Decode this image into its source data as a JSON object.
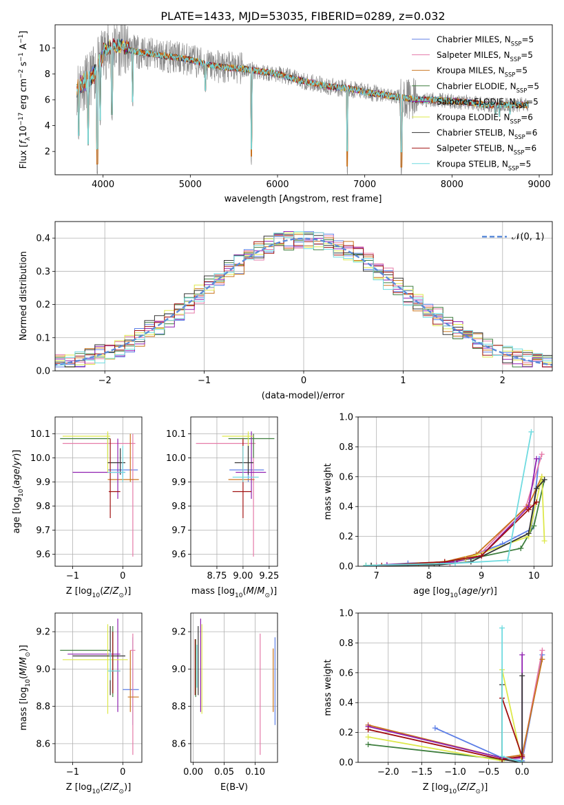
{
  "figure": {
    "title": "PLATE=1433, MJD=53035, FIBERID=0289, z=0.032"
  },
  "chart_data": [
    {
      "id": "spectrum",
      "type": "line",
      "xlabel": "wavelength [Angstrom, rest frame]",
      "ylabel": "Flux [f_λ10^-17 erg cm^-2 s^-1 A^-1]",
      "xlim": [
        3450,
        9150
      ],
      "ylim": [
        0.2,
        11.8
      ],
      "xticks": [
        4000,
        5000,
        6000,
        7000,
        8000,
        9000
      ],
      "yticks": [
        2,
        4,
        6,
        8,
        10
      ],
      "legend": "top-right",
      "series": [
        {
          "name": "Chabrier MILES, N_SSP=5",
          "color": "#5c7ee6"
        },
        {
          "name": "Salpeter MILES, N_SSP=5",
          "color": "#e57aa8"
        },
        {
          "name": "Kroupa MILES, N_SSP=5",
          "color": "#c9731a"
        },
        {
          "name": "Chabrier ELODIE, N_SSP=5",
          "color": "#3d7d3d"
        },
        {
          "name": "Salpeter ELODIE, N_SSP=5",
          "color": "#8e1fb0"
        },
        {
          "name": "Kroupa ELODIE, N_SSP=6",
          "color": "#dde84a"
        },
        {
          "name": "Chabrier STELIB, N_SSP=6",
          "color": "#333333"
        },
        {
          "name": "Salpeter STELIB, N_SSP=6",
          "color": "#a01010"
        },
        {
          "name": "Kroupa STELIB, N_SSP=5",
          "color": "#6fdbe0"
        }
      ],
      "data_color": "#888888",
      "continuum": [
        [
          3700,
          7.0
        ],
        [
          3800,
          7.4
        ],
        [
          3900,
          8.0
        ],
        [
          4000,
          9.6
        ],
        [
          4100,
          10.0
        ],
        [
          4200,
          10.0
        ],
        [
          4400,
          9.7
        ],
        [
          4600,
          9.5
        ],
        [
          4800,
          9.3
        ],
        [
          5000,
          9.1
        ],
        [
          5200,
          8.7
        ],
        [
          5400,
          8.5
        ],
        [
          5600,
          8.4
        ],
        [
          5800,
          8.2
        ],
        [
          6000,
          8.0
        ],
        [
          6200,
          7.6
        ],
        [
          6400,
          7.3
        ],
        [
          6600,
          7.0
        ],
        [
          6800,
          6.9
        ],
        [
          7000,
          6.6
        ],
        [
          7200,
          6.4
        ],
        [
          7400,
          6.2
        ],
        [
          7600,
          6.0
        ],
        [
          7800,
          6.0
        ],
        [
          8000,
          5.9
        ],
        [
          8200,
          5.8
        ],
        [
          8400,
          5.6
        ],
        [
          8600,
          5.6
        ],
        [
          8800,
          5.6
        ]
      ],
      "dips": [
        [
          3720,
          2.8
        ],
        [
          3830,
          2.0
        ],
        [
          3934,
          0.2
        ],
        [
          3969,
          3.9
        ],
        [
          4102,
          4.3
        ],
        [
          4340,
          5.4
        ],
        [
          5175,
          6.5
        ],
        [
          5700,
          0.9
        ],
        [
          6800,
          0.2
        ],
        [
          7420,
          0.2
        ],
        [
          8500,
          4.8
        ],
        [
          8544,
          4.6
        ],
        [
          8664,
          4.8
        ]
      ]
    },
    {
      "id": "residuals",
      "type": "line",
      "xlabel": "(data-model)/error",
      "ylabel": "Normed distribution",
      "xlim": [
        -2.5,
        2.5
      ],
      "ylim": [
        0,
        0.45
      ],
      "xticks": [
        -2,
        -1,
        0,
        1,
        2
      ],
      "yticks": [
        0.0,
        0.1,
        0.2,
        0.3,
        0.4
      ],
      "legend": "top-right",
      "legend_label": "𝒩(0, 1)",
      "gauss_color": "#5b8bd9",
      "hist_bin_width": 0.1
    },
    {
      "id": "age-vs-z",
      "type": "scatter",
      "xlabel": "Z [log10(Z/Z⊙)]",
      "ylabel": "age [log10(age/yr)]",
      "xlim": [
        -1.35,
        0.38
      ],
      "ylim": [
        9.55,
        10.17
      ],
      "xticks": [
        -1,
        0
      ],
      "yticks": [
        9.6,
        9.7,
        9.8,
        9.9,
        10.0,
        10.1
      ],
      "points": [
        {
          "x": 0.0,
          "y": 9.95,
          "xl": -0.3,
          "xh": 0.3,
          "yl": 9.92,
          "yh": 9.98,
          "c": 0
        },
        {
          "x": 0.2,
          "y": 10.06,
          "xl": -1.2,
          "xh": 0.25,
          "yl": 9.59,
          "yh": 10.1,
          "c": 1
        },
        {
          "x": 0.15,
          "y": 9.91,
          "xl": -0.3,
          "xh": 0.32,
          "yl": 9.9,
          "yh": 10.1,
          "c": 2
        },
        {
          "x": -0.3,
          "y": 10.08,
          "xl": -1.25,
          "xh": -0.25,
          "yl": 10.0,
          "yh": 10.1,
          "c": 3
        },
        {
          "x": -0.1,
          "y": 9.94,
          "xl": -1.0,
          "xh": 0.05,
          "yl": 9.83,
          "yh": 10.08,
          "c": 4
        },
        {
          "x": -0.3,
          "y": 10.09,
          "xl": -1.2,
          "xh": -0.25,
          "yl": 9.94,
          "yh": 10.11,
          "c": 5
        },
        {
          "x": -0.05,
          "y": 9.98,
          "xl": -0.3,
          "xh": 0.05,
          "yl": 9.93,
          "yh": 10.04,
          "c": 6
        },
        {
          "x": -0.25,
          "y": 9.86,
          "xl": -0.28,
          "xh": -0.05,
          "yl": 9.75,
          "yh": 10.08,
          "c": 7
        },
        {
          "x": 0.0,
          "y": 9.94,
          "xl": -0.3,
          "xh": 0.05,
          "yl": 9.9,
          "yh": 10.05,
          "c": 8
        }
      ]
    },
    {
      "id": "age-vs-mass",
      "type": "scatter",
      "xlabel": "mass [log10(M/M⊙)]",
      "ylabel": "",
      "xlim": [
        8.5,
        9.33
      ],
      "ylim": [
        9.55,
        10.17
      ],
      "xticks": [
        8.75,
        9.0,
        9.25
      ],
      "yticks": [
        9.6,
        9.7,
        9.8,
        9.9,
        10.0,
        10.1
      ],
      "points": [
        {
          "x": 9.05,
          "y": 9.95,
          "xl": 8.87,
          "xh": 9.2,
          "yl": 9.9,
          "yh": 10.1,
          "c": 0
        },
        {
          "x": 9.1,
          "y": 10.06,
          "xl": 8.55,
          "xh": 9.12,
          "yl": 9.59,
          "yh": 10.1,
          "c": 1
        },
        {
          "x": 9.0,
          "y": 9.91,
          "xl": 8.86,
          "xh": 9.11,
          "yl": 9.9,
          "yh": 10.08,
          "c": 2
        },
        {
          "x": 9.1,
          "y": 10.08,
          "xl": 8.86,
          "xh": 9.3,
          "yl": 10.0,
          "yh": 10.1,
          "c": 3
        },
        {
          "x": 9.08,
          "y": 9.94,
          "xl": 8.93,
          "xh": 9.22,
          "yl": 9.83,
          "yh": 10.11,
          "c": 4
        },
        {
          "x": 9.05,
          "y": 10.09,
          "xl": 8.8,
          "xh": 9.1,
          "yl": 9.94,
          "yh": 10.11,
          "c": 5
        },
        {
          "x": 9.05,
          "y": 9.98,
          "xl": 8.92,
          "xh": 9.1,
          "yl": 9.93,
          "yh": 10.05,
          "c": 6
        },
        {
          "x": 9.0,
          "y": 9.86,
          "xl": 8.9,
          "xh": 9.08,
          "yl": 9.75,
          "yh": 10.08,
          "c": 7
        },
        {
          "x": 9.0,
          "y": 9.92,
          "xl": 8.9,
          "xh": 9.15,
          "yl": 9.9,
          "yh": 10.05,
          "c": 8
        }
      ]
    },
    {
      "id": "mass-weight-vs-age",
      "type": "line",
      "xlabel": "age [log10(age/yr)]",
      "ylabel": "mass weight",
      "xlim": [
        6.65,
        10.35
      ],
      "ylim": [
        0,
        1.0
      ],
      "xticks": [
        7,
        8,
        9,
        10
      ],
      "yticks": [
        0.0,
        0.2,
        0.4,
        0.6,
        0.8,
        1.0
      ],
      "series": [
        {
          "c": 0,
          "x": [
            6.9,
            7.6,
            8.5,
            9.4,
            9.95,
            10.1
          ],
          "y": [
            0.005,
            0.02,
            0.03,
            0.15,
            0.25,
            0.72
          ]
        },
        {
          "c": 1,
          "x": [
            7.0,
            8.4,
            9.0,
            9.85,
            10.15
          ],
          "y": [
            0.005,
            0.02,
            0.09,
            0.4,
            0.75
          ]
        },
        {
          "c": 2,
          "x": [
            6.9,
            8.3,
            8.9,
            9.9,
            10.15
          ],
          "y": [
            0.005,
            0.03,
            0.08,
            0.41,
            0.6
          ]
        },
        {
          "c": 3,
          "x": [
            6.8,
            8.1,
            8.8,
            9.75,
            10.0,
            10.2
          ],
          "y": [
            0.005,
            0.01,
            0.05,
            0.12,
            0.27,
            0.58
          ]
        },
        {
          "c": 4,
          "x": [
            7.2,
            8.5,
            9.0,
            9.9,
            10.05
          ],
          "y": [
            0.01,
            0.03,
            0.07,
            0.4,
            0.72
          ]
        },
        {
          "c": 5,
          "x": [
            6.8,
            7.8,
            8.7,
            9.9,
            10.15,
            10.2
          ],
          "y": [
            0.005,
            0.01,
            0.05,
            0.2,
            0.6,
            0.17
          ]
        },
        {
          "c": 6,
          "x": [
            6.9,
            8.2,
            8.8,
            9.9,
            10.05,
            10.2
          ],
          "y": [
            0.005,
            0.01,
            0.03,
            0.22,
            0.52,
            0.58
          ]
        },
        {
          "c": 7,
          "x": [
            7.1,
            8.3,
            9.0,
            9.9,
            10.05
          ],
          "y": [
            0.005,
            0.03,
            0.07,
            0.38,
            0.43
          ]
        },
        {
          "c": 8,
          "x": [
            6.8,
            8.5,
            9.5,
            9.95
          ],
          "y": [
            0.005,
            0.02,
            0.04,
            0.9
          ]
        }
      ]
    },
    {
      "id": "mass-vs-z",
      "type": "scatter",
      "xlabel": "Z [log10(Z/Z⊙)]",
      "ylabel": "mass [log10(M/M⊙)]",
      "xlim": [
        -1.35,
        0.38
      ],
      "ylim": [
        8.5,
        9.3
      ],
      "xticks": [
        -1,
        0
      ],
      "yticks": [
        8.6,
        8.8,
        9.0,
        9.2
      ],
      "points": [
        {
          "x": 0.2,
          "y": 8.89,
          "xl": 0.0,
          "xh": 0.32,
          "yl": 8.7,
          "yh": 9.17,
          "c": 0
        },
        {
          "x": 0.2,
          "y": 9.1,
          "xl": 0.15,
          "xh": 0.25,
          "yl": 8.54,
          "yh": 9.19,
          "c": 1
        },
        {
          "x": 0.15,
          "y": 8.85,
          "xl": 0.1,
          "xh": 0.32,
          "yl": 8.77,
          "yh": 9.1,
          "c": 2
        },
        {
          "x": -0.2,
          "y": 9.1,
          "xl": -1.25,
          "xh": -0.25,
          "yl": 8.85,
          "yh": 9.23,
          "c": 3
        },
        {
          "x": -0.1,
          "y": 9.08,
          "xl": -1.1,
          "xh": -0.05,
          "yl": 8.77,
          "yh": 9.27,
          "c": 4
        },
        {
          "x": -0.3,
          "y": 9.05,
          "xl": -1.2,
          "xh": 0.1,
          "yl": 8.76,
          "yh": 9.24,
          "c": 5
        },
        {
          "x": -0.25,
          "y": 9.07,
          "xl": -1.0,
          "xh": 0.05,
          "yl": 8.86,
          "yh": 9.23,
          "c": 6
        },
        {
          "x": -0.2,
          "y": 8.99,
          "xl": -0.28,
          "xh": -0.05,
          "yl": 8.87,
          "yh": 9.2,
          "c": 7
        },
        {
          "x": -0.25,
          "y": 8.99,
          "xl": -0.3,
          "xh": -0.05,
          "yl": 8.94,
          "yh": 9.09,
          "c": 8
        }
      ]
    },
    {
      "id": "mass-vs-ebv",
      "type": "scatter",
      "xlabel": "E(B-V)",
      "ylabel": "",
      "xlim": [
        -0.004,
        0.136
      ],
      "ylim": [
        8.5,
        9.3
      ],
      "xticks": [
        0.0,
        0.05,
        0.1
      ],
      "yticks": [
        8.6,
        8.8,
        9.0,
        9.2
      ],
      "points": [
        {
          "x": 0.132,
          "y": 8.94,
          "yl": 8.7,
          "yh": 9.17,
          "c": 0
        },
        {
          "x": 0.108,
          "y": 8.86,
          "yl": 8.54,
          "yh": 9.19,
          "c": 1
        },
        {
          "x": 0.129,
          "y": 8.94,
          "yl": 8.77,
          "yh": 9.11,
          "c": 2
        },
        {
          "x": 0.004,
          "y": 9.0,
          "yl": 8.85,
          "yh": 9.16,
          "c": 3
        },
        {
          "x": 0.012,
          "y": 9.08,
          "yl": 8.77,
          "yh": 9.27,
          "c": 4
        },
        {
          "x": 0.014,
          "y": 9.0,
          "yl": 8.76,
          "yh": 9.24,
          "c": 5
        },
        {
          "x": 0.008,
          "y": 9.05,
          "yl": 8.86,
          "yh": 9.23,
          "c": 6
        },
        {
          "x": 0.003,
          "y": 9.0,
          "yl": 8.86,
          "yh": 9.16,
          "c": 7
        },
        {
          "x": 0.006,
          "y": 9.0,
          "yl": 8.9,
          "yh": 9.13,
          "c": 8
        }
      ]
    },
    {
      "id": "mass-weight-vs-z",
      "type": "line",
      "xlabel": "Z [log10(Z/Z⊙)]",
      "ylabel": "mass weight",
      "xlim": [
        -2.45,
        0.45
      ],
      "ylim": [
        0,
        1.0
      ],
      "xticks": [
        -2.0,
        -1.5,
        -1.0,
        -0.5,
        0.0
      ],
      "yticks": [
        0.0,
        0.2,
        0.4,
        0.6,
        0.8,
        1.0
      ],
      "series": [
        {
          "c": 0,
          "x": [
            -1.3,
            -0.3,
            0.0,
            0.3
          ],
          "y": [
            0.23,
            0.03,
            0.01,
            0.72
          ]
        },
        {
          "c": 1,
          "x": [
            -2.3,
            -0.3,
            0.0,
            0.3
          ],
          "y": [
            0.22,
            0.02,
            0.03,
            0.75
          ]
        },
        {
          "c": 2,
          "x": [
            -2.3,
            -0.3,
            0.0,
            0.3
          ],
          "y": [
            0.25,
            0.03,
            0.05,
            0.69
          ]
        },
        {
          "c": 3,
          "x": [
            -2.3,
            -0.3,
            0.0
          ],
          "y": [
            0.12,
            0.02,
            0.0
          ]
        },
        {
          "c": 4,
          "x": [
            -2.3,
            -0.3,
            0.0,
            0.0
          ],
          "y": [
            0.24,
            0.03,
            0.03,
            0.72
          ]
        },
        {
          "c": 5,
          "x": [
            -2.3,
            -0.3,
            -0.3,
            0.0
          ],
          "y": [
            0.17,
            0.01,
            0.62,
            0.0
          ]
        },
        {
          "c": 6,
          "x": [
            -0.3,
            -0.3,
            0.0,
            0.0
          ],
          "y": [
            0.52,
            0.02,
            0.0,
            0.58
          ]
        },
        {
          "c": 7,
          "x": [
            -2.3,
            -0.3,
            0.0,
            -0.3
          ],
          "y": [
            0.22,
            0.02,
            0.04,
            0.43
          ]
        },
        {
          "c": 8,
          "x": [
            -0.3,
            -0.3,
            0.0
          ],
          "y": [
            0.9,
            0.04,
            0.0
          ]
        }
      ]
    }
  ]
}
